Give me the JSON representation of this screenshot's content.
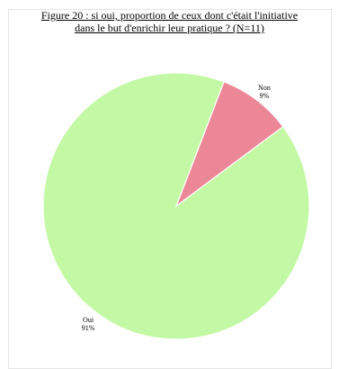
{
  "chart_data": {
    "type": "pie",
    "title_line1": "Figure 20 : si oui, proportion de ceux dont c'était l'initiative",
    "title_line2": "dans le but d'enrichir leur pratique ? (N=11)",
    "slices": [
      {
        "name": "Oui",
        "value": 91,
        "label": "91%",
        "color": "#c3f9a4"
      },
      {
        "name": "Non",
        "value": 9,
        "label": "9%",
        "color": "#ec8797"
      }
    ],
    "start_angle_deg": 21
  }
}
